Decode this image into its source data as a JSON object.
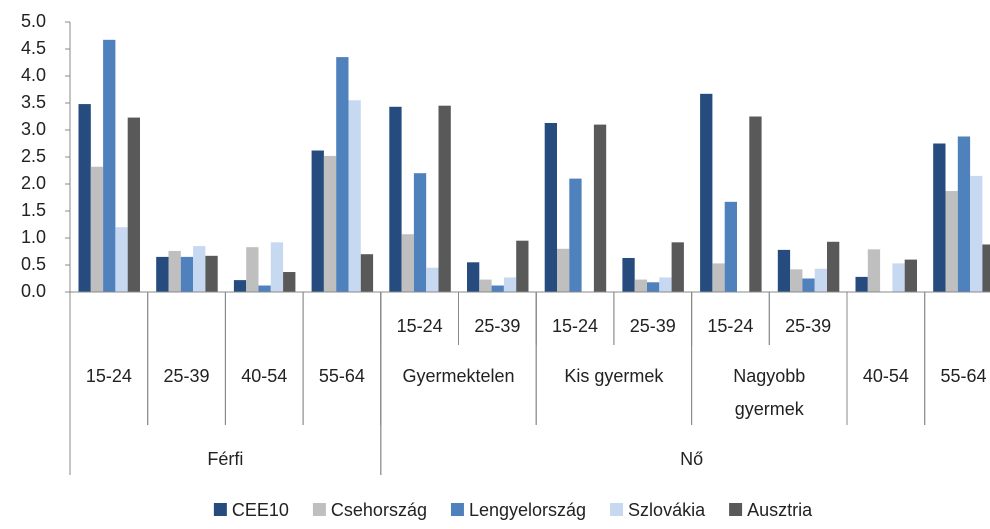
{
  "chart_data": {
    "type": "bar",
    "category_groups": [
      {
        "label": "Férfi",
        "children": [
          {
            "label": "15-24"
          },
          {
            "label": "25-39"
          },
          {
            "label": "40-54"
          },
          {
            "label": "55-64"
          }
        ]
      },
      {
        "label": "Nő",
        "children": [
          {
            "label": "Gyermektelen",
            "children": [
              {
                "label": "15-24"
              },
              {
                "label": "25-39"
              }
            ]
          },
          {
            "label": "Kis gyermek",
            "children": [
              {
                "label": "15-24"
              },
              {
                "label": "25-39"
              }
            ]
          },
          {
            "label": "Nagyobb gyermek",
            "children": [
              {
                "label": "15-24"
              },
              {
                "label": "25-39"
              }
            ]
          },
          {
            "label": "40-54"
          },
          {
            "label": "55-64"
          }
        ]
      }
    ],
    "series": [
      {
        "name": "CEE10",
        "color": "#264b7e",
        "values": [
          3.48,
          0.65,
          0.22,
          2.62,
          3.43,
          0.55,
          3.13,
          0.63,
          3.67,
          0.78,
          0.28,
          2.75
        ]
      },
      {
        "name": "Csehország",
        "color": "#bfbfbf",
        "values": [
          2.32,
          0.76,
          0.83,
          2.52,
          1.07,
          0.23,
          0.8,
          0.23,
          0.53,
          0.42,
          0.79,
          1.87
        ]
      },
      {
        "name": "Lengyelország",
        "color": "#4f81bd",
        "values": [
          4.67,
          0.65,
          0.12,
          4.35,
          2.2,
          0.12,
          2.1,
          0.18,
          1.67,
          0.25,
          null,
          2.88
        ]
      },
      {
        "name": "Szlovákia",
        "color": "#c6d9f1",
        "values": [
          1.2,
          0.85,
          0.92,
          3.55,
          0.45,
          0.27,
          null,
          0.27,
          null,
          0.43,
          0.53,
          2.15
        ]
      },
      {
        "name": "Ausztria",
        "color": "#595959",
        "values": [
          3.23,
          0.67,
          0.37,
          0.7,
          3.45,
          0.95,
          3.1,
          0.92,
          3.25,
          0.93,
          0.6,
          0.88
        ]
      }
    ],
    "ylim": [
      0,
      5
    ],
    "yticks": [
      {
        "value": 0,
        "label": "0.0"
      },
      {
        "value": 0.5,
        "label": "0.5"
      },
      {
        "value": 1,
        "label": "1.0"
      },
      {
        "value": 1.5,
        "label": "1.5"
      },
      {
        "value": 2,
        "label": "2.0"
      },
      {
        "value": 2.5,
        "label": "2.5"
      },
      {
        "value": 3,
        "label": "3.0"
      },
      {
        "value": 3.5,
        "label": "3.5"
      },
      {
        "value": 4,
        "label": "4.0"
      },
      {
        "value": 4.5,
        "label": "4.5"
      },
      {
        "value": 5,
        "label": "5.0"
      }
    ],
    "legend": "bottom"
  }
}
